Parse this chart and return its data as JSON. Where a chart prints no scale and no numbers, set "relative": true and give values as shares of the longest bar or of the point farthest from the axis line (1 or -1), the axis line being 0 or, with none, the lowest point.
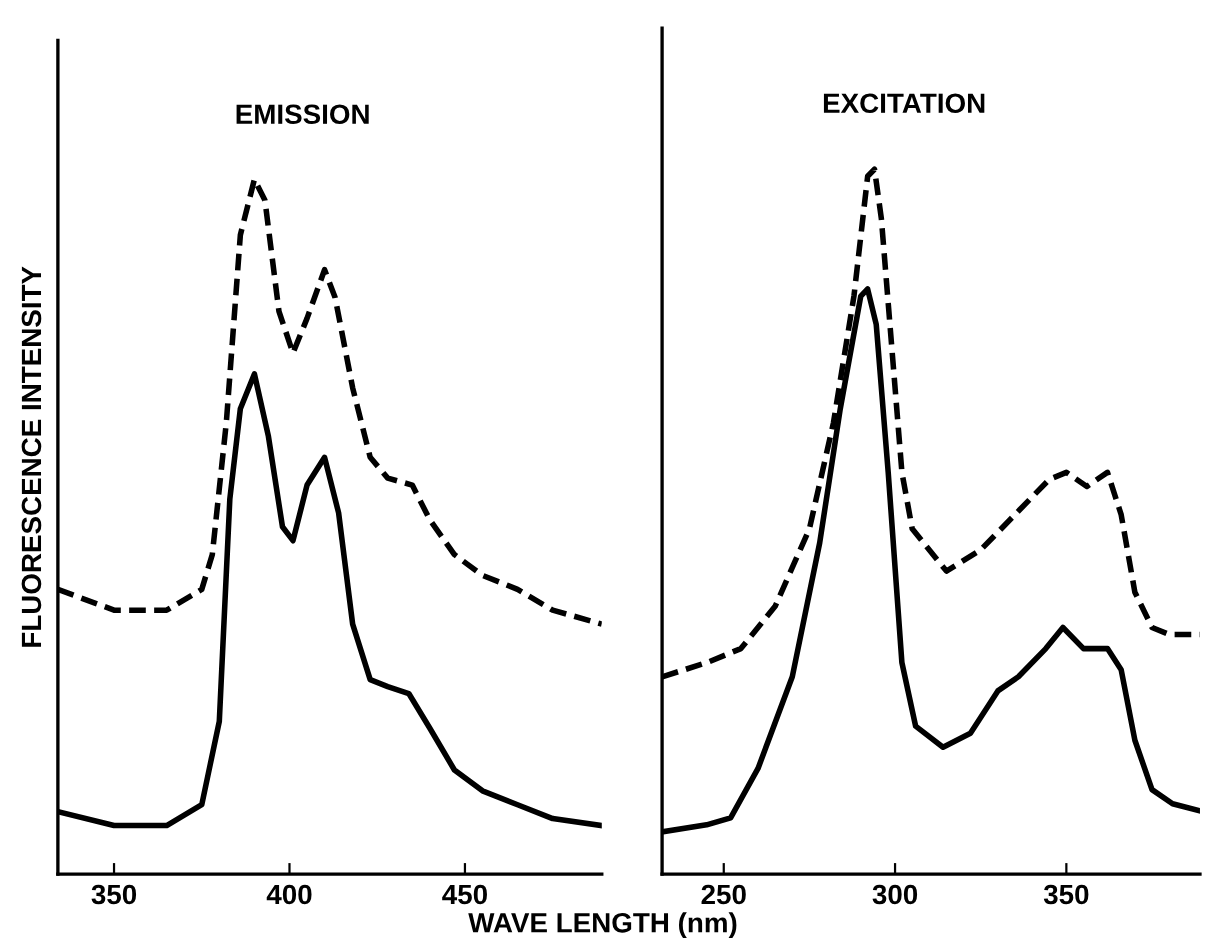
{
  "chart_data": [
    {
      "type": "line",
      "title": "EMISSION",
      "xlabel": "WAVE LENGTH (nm)",
      "ylabel": "FLUORESCENCE INTENSITY",
      "relative": true,
      "xlim": [
        334,
        489
      ],
      "xticks": [
        350,
        400,
        450
      ],
      "tick_labels": "x",
      "series": [
        {
          "color": "#000000",
          "line_style": "dashed",
          "x": [
            334,
            350,
            365,
            375,
            378,
            382,
            386,
            390,
            393,
            397,
            401,
            405,
            410,
            413,
            418,
            423,
            428,
            435,
            440,
            447,
            455,
            465,
            475,
            489
          ],
          "values": [
            0.41,
            0.38,
            0.38,
            0.41,
            0.46,
            0.65,
            0.92,
            1,
            0.97,
            0.81,
            0.75,
            0.8,
            0.87,
            0.83,
            0.7,
            0.6,
            0.57,
            0.56,
            0.51,
            0.46,
            0.43,
            0.41,
            0.38,
            0.36
          ]
        },
        {
          "color": "#000000",
          "line_style": "solid",
          "x": [
            334,
            350,
            365,
            375,
            380,
            383,
            386,
            390,
            394,
            398,
            401,
            405,
            410,
            414,
            418,
            423,
            428,
            434,
            440,
            447,
            455,
            465,
            475,
            489
          ],
          "values": [
            0.09,
            0.07,
            0.07,
            0.1,
            0.22,
            0.54,
            0.67,
            0.72,
            0.63,
            0.5,
            0.48,
            0.56,
            0.6,
            0.52,
            0.36,
            0.28,
            0.27,
            0.26,
            0.21,
            0.15,
            0.12,
            0.1,
            0.08,
            0.07
          ]
        }
      ]
    },
    {
      "type": "line",
      "title": "EXCITATION",
      "relative": true,
      "xlim": [
        232,
        389
      ],
      "xticks": [
        250,
        300,
        350
      ],
      "tick_labels": "x",
      "series": [
        {
          "color": "#000000",
          "line_style": "dashed",
          "x": [
            232,
            245,
            255,
            265,
            275,
            282,
            288,
            292,
            294,
            296,
            299,
            302,
            305,
            315,
            325,
            335,
            345,
            350,
            356,
            362,
            366,
            370,
            375,
            380,
            389
          ],
          "values": [
            0.28,
            0.3,
            0.32,
            0.38,
            0.49,
            0.64,
            0.82,
            0.99,
            1,
            0.93,
            0.75,
            0.57,
            0.49,
            0.43,
            0.46,
            0.51,
            0.56,
            0.57,
            0.55,
            0.57,
            0.51,
            0.4,
            0.35,
            0.34,
            0.34
          ]
        },
        {
          "color": "#000000",
          "line_style": "solid",
          "x": [
            232,
            245,
            252,
            260,
            270,
            278,
            284,
            290,
            292,
            294.5,
            298,
            302,
            306,
            314,
            322,
            330,
            336,
            344,
            349,
            355,
            362,
            366,
            370,
            375,
            381,
            389
          ],
          "values": [
            0.06,
            0.07,
            0.08,
            0.15,
            0.28,
            0.47,
            0.66,
            0.82,
            0.83,
            0.78,
            0.57,
            0.3,
            0.21,
            0.18,
            0.2,
            0.26,
            0.28,
            0.32,
            0.35,
            0.32,
            0.32,
            0.29,
            0.19,
            0.12,
            0.1,
            0.09
          ]
        }
      ]
    }
  ]
}
